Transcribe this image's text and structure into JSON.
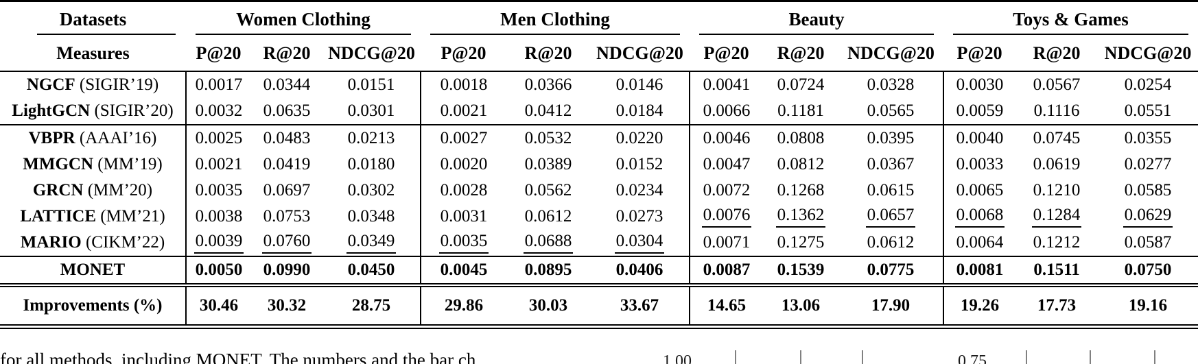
{
  "table": {
    "corner": {
      "datasets": "Datasets",
      "measures": "Measures"
    },
    "groups": [
      {
        "label": "Women Clothing",
        "measures": [
          "P@20",
          "R@20",
          "NDCG@20"
        ]
      },
      {
        "label": "Men Clothing",
        "measures": [
          "P@20",
          "R@20",
          "NDCG@20"
        ]
      },
      {
        "label": "Beauty",
        "measures": [
          "P@20",
          "R@20",
          "NDCG@20"
        ]
      },
      {
        "label": "Toys & Games",
        "measures": [
          "P@20",
          "R@20",
          "NDCG@20"
        ]
      }
    ],
    "rows": [
      {
        "method": "NGCF",
        "venue": "(SIGIR’19)",
        "values": [
          "0.0017",
          "0.0344",
          "0.0151",
          "0.0018",
          "0.0366",
          "0.0146",
          "0.0041",
          "0.0724",
          "0.0328",
          "0.0030",
          "0.0567",
          "0.0254"
        ]
      },
      {
        "method": "LightGCN",
        "venue": "(SIGIR’20)",
        "values": [
          "0.0032",
          "0.0635",
          "0.0301",
          "0.0021",
          "0.0412",
          "0.0184",
          "0.0066",
          "0.1181",
          "0.0565",
          "0.0059",
          "0.1116",
          "0.0551"
        ]
      },
      {
        "method": "VBPR",
        "venue": "(AAAI’16)",
        "rule_above": true,
        "values": [
          "0.0025",
          "0.0483",
          "0.0213",
          "0.0027",
          "0.0532",
          "0.0220",
          "0.0046",
          "0.0808",
          "0.0395",
          "0.0040",
          "0.0745",
          "0.0355"
        ]
      },
      {
        "method": "MMGCN",
        "venue": "(MM’19)",
        "values": [
          "0.0021",
          "0.0419",
          "0.0180",
          "0.0020",
          "0.0389",
          "0.0152",
          "0.0047",
          "0.0812",
          "0.0367",
          "0.0033",
          "0.0619",
          "0.0277"
        ]
      },
      {
        "method": "GRCN",
        "venue": "(MM’20)",
        "values": [
          "0.0035",
          "0.0697",
          "0.0302",
          "0.0028",
          "0.0562",
          "0.0234",
          "0.0072",
          "0.1268",
          "0.0615",
          "0.0065",
          "0.1210",
          "0.0585"
        ]
      },
      {
        "method": "LATTICE",
        "venue": "(MM’21)",
        "underlined": [
          6,
          7,
          8,
          9,
          10,
          11
        ],
        "values": [
          "0.0038",
          "0.0753",
          "0.0348",
          "0.0031",
          "0.0612",
          "0.0273",
          "0.0076",
          "0.1362",
          "0.0657",
          "0.0068",
          "0.1284",
          "0.0629"
        ]
      },
      {
        "method": "MARIO",
        "venue": "(CIKM’22)",
        "underlined": [
          0,
          1,
          2,
          3,
          4,
          5
        ],
        "values": [
          "0.0039",
          "0.0760",
          "0.0349",
          "0.0035",
          "0.0688",
          "0.0304",
          "0.0071",
          "0.1275",
          "0.0612",
          "0.0064",
          "0.1212",
          "0.0587"
        ]
      },
      {
        "method": "MONET",
        "venue": "",
        "bold": true,
        "rule_above": true,
        "values": [
          "0.0050",
          "0.0990",
          "0.0450",
          "0.0045",
          "0.0895",
          "0.0406",
          "0.0087",
          "0.1539",
          "0.0775",
          "0.0081",
          "0.1511",
          "0.0750"
        ]
      },
      {
        "method": "Improvements (%)",
        "venue": "",
        "bold": true,
        "double_rule_above": true,
        "tall": true,
        "values": [
          "30.46",
          "30.32",
          "28.75",
          "29.86",
          "30.03",
          "33.67",
          "14.65",
          "13.06",
          "17.90",
          "19.26",
          "17.73",
          "19.16"
        ]
      }
    ]
  },
  "below_table": {
    "clipped_text": "for all methods, including MONET. The numbers and the bar ch",
    "left_figure": {
      "tick_label": "1.00"
    },
    "right_figure": {
      "tick_label": "0.75"
    }
  }
}
